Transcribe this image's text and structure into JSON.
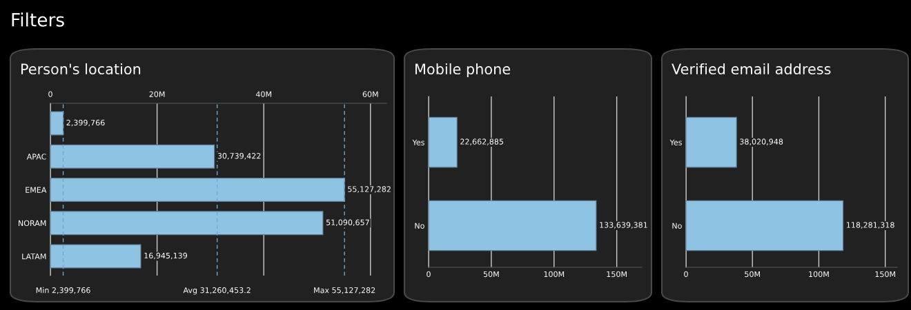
{
  "chart_data": [
    {
      "type": "bar",
      "orientation": "horizontal",
      "title": "Person's location",
      "annotations": [
        "Filters"
      ],
      "categories": [
        null,
        "APAC",
        "EMEA",
        "NORAM",
        "LATAM"
      ],
      "values": [
        2399766,
        30739422,
        55127282,
        51090657,
        16945139
      ],
      "color": "#8fc3e4",
      "xlim": [
        0,
        63000000
      ],
      "xticks": [
        0,
        {
          "value": 20000000,
          "label": "20M"
        },
        {
          "value": 40000000,
          "label": "40M"
        },
        {
          "value": 60000000,
          "label": "60M"
        }
      ],
      "ref_lines": [
        {
          "axis": "x",
          "value": 2399766,
          "label": "Min 2,399,766",
          "color": "#6fa8d0",
          "line_style": "dashed"
        },
        {
          "axis": "x",
          "value": 31260453.2,
          "label": "Avg 31,260,453.2",
          "color": "#6fa8d0",
          "line_style": "dashed"
        },
        {
          "axis": "x",
          "value": 55127282,
          "label": "Max 55,127,282",
          "color": "#6fa8d0",
          "line_style": "dashed"
        }
      ],
      "value_labels": [
        "2,399,766",
        "30,739,422",
        "55,127,282",
        "51,090,657",
        "16,945,139"
      ],
      "grid": "x",
      "legend": false
    },
    {
      "type": "bar",
      "orientation": "horizontal",
      "title": "Mobile phone",
      "categories": [
        "Yes",
        "No"
      ],
      "values": [
        22662885,
        133639381
      ],
      "color": "#8fc3e4",
      "xlim": [
        0,
        170000000
      ],
      "xticks": [
        0,
        {
          "value": 50000000,
          "label": "50M"
        },
        {
          "value": 100000000,
          "label": "100M"
        },
        {
          "value": 150000000,
          "label": "150M"
        }
      ],
      "value_labels": [
        "22,662,885",
        "133,639,381"
      ],
      "grid": "x",
      "legend": false
    },
    {
      "type": "bar",
      "orientation": "horizontal",
      "title": "Verified email address",
      "categories": [
        "Yes",
        "No"
      ],
      "values": [
        38020948,
        118281318
      ],
      "color": "#8fc3e4",
      "xlim": [
        0,
        159000000
      ],
      "xticks": [
        0,
        {
          "value": 50000000,
          "label": "50M"
        },
        {
          "value": 100000000,
          "label": "100M"
        },
        {
          "value": 150000000,
          "label": "150M"
        }
      ],
      "value_labels": [
        "38,020,948",
        "118,281,318"
      ],
      "grid": "x",
      "legend": false
    }
  ]
}
